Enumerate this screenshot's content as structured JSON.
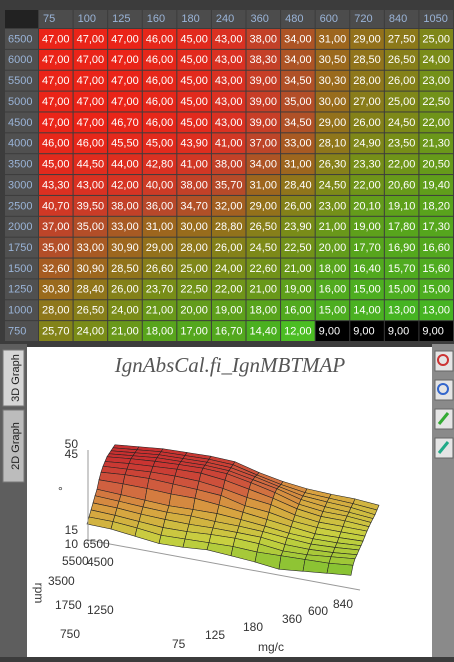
{
  "table": {
    "columns": [
      "75",
      "100",
      "125",
      "160",
      "180",
      "240",
      "360",
      "480",
      "600",
      "720",
      "840",
      "1050"
    ],
    "rows": [
      {
        "label": "6500",
        "cells": [
          "47,00",
          "47,00",
          "47,00",
          "46,00",
          "45,00",
          "43,00",
          "38,00",
          "34,00",
          "31,00",
          "29,00",
          "27,50",
          "25,00"
        ]
      },
      {
        "label": "6000",
        "cells": [
          "47,00",
          "47,00",
          "47,00",
          "46,00",
          "45,00",
          "43,00",
          "38,30",
          "34,00",
          "30,50",
          "28,50",
          "26,50",
          "24,00"
        ]
      },
      {
        "label": "5500",
        "cells": [
          "47,00",
          "47,00",
          "47,00",
          "46,00",
          "45,00",
          "43,00",
          "39,00",
          "34,50",
          "30,30",
          "28,00",
          "26,00",
          "23,00"
        ]
      },
      {
        "label": "5000",
        "cells": [
          "47,00",
          "47,00",
          "47,00",
          "46,00",
          "45,00",
          "43,00",
          "39,00",
          "35,00",
          "30,00",
          "27,00",
          "25,00",
          "22,50"
        ]
      },
      {
        "label": "4500",
        "cells": [
          "47,00",
          "47,00",
          "46,70",
          "46,00",
          "45,00",
          "43,00",
          "39,00",
          "34,50",
          "29,00",
          "26,00",
          "24,50",
          "22,00"
        ]
      },
      {
        "label": "4000",
        "cells": [
          "46,00",
          "46,00",
          "45,50",
          "45,00",
          "43,90",
          "41,00",
          "37,00",
          "33,00",
          "28,10",
          "24,90",
          "23,50",
          "21,30"
        ]
      },
      {
        "label": "3500",
        "cells": [
          "45,00",
          "44,50",
          "44,00",
          "42,80",
          "41,00",
          "38,00",
          "34,00",
          "31,00",
          "26,30",
          "23,30",
          "22,00",
          "20,50"
        ]
      },
      {
        "label": "3000",
        "cells": [
          "43,30",
          "43,00",
          "42,00",
          "40,00",
          "38,00",
          "35,70",
          "31,00",
          "28,40",
          "24,50",
          "22,00",
          "20,60",
          "19,40"
        ]
      },
      {
        "label": "2500",
        "cells": [
          "40,70",
          "39,50",
          "38,00",
          "36,00",
          "34,70",
          "32,00",
          "29,00",
          "26,00",
          "23,00",
          "20,10",
          "19,10",
          "18,20"
        ]
      },
      {
        "label": "2000",
        "cells": [
          "37,00",
          "35,00",
          "33,00",
          "31,00",
          "30,00",
          "28,80",
          "26,50",
          "23,90",
          "21,00",
          "19,00",
          "17,80",
          "17,30"
        ]
      },
      {
        "label": "1750",
        "cells": [
          "35,00",
          "33,00",
          "30,90",
          "29,00",
          "28,00",
          "26,00",
          "24,50",
          "22,50",
          "20,00",
          "17,70",
          "16,90",
          "16,60"
        ]
      },
      {
        "label": "1500",
        "cells": [
          "32,60",
          "30,90",
          "28,50",
          "26,60",
          "25,00",
          "24,00",
          "22,60",
          "21,00",
          "18,00",
          "16,40",
          "15,70",
          "15,60"
        ]
      },
      {
        "label": "1250",
        "cells": [
          "30,30",
          "28,40",
          "26,00",
          "23,70",
          "22,50",
          "22,00",
          "21,00",
          "19,00",
          "16,00",
          "15,00",
          "15,00",
          "15,00"
        ]
      },
      {
        "label": "1000",
        "cells": [
          "28,00",
          "26,50",
          "24,00",
          "21,00",
          "20,00",
          "19,00",
          "18,00",
          "16,00",
          "15,00",
          "14,00",
          "13,00",
          "13,00"
        ]
      },
      {
        "label": "750",
        "cells": [
          "25,70",
          "24,00",
          "21,00",
          "18,00",
          "17,00",
          "16,70",
          "14,40",
          "12,00",
          "9,00",
          "9,00",
          "9,00",
          "9,00"
        ]
      }
    ]
  },
  "graph": {
    "title": "IgnAbsCal.fi_IgnMBTMAP",
    "tabs": [
      "3D Graph",
      "2D Graph"
    ],
    "z_ticks": [
      "50",
      "45",
      "15",
      "10"
    ],
    "z_unit": "°",
    "y_label": "rpm",
    "y_ticks": [
      "6500",
      "5500",
      "4500",
      "3500",
      "1750",
      "1250",
      "750"
    ],
    "x_label": "mg/c",
    "x_ticks": [
      "75",
      "125",
      "180",
      "360",
      "600",
      "840"
    ]
  }
}
